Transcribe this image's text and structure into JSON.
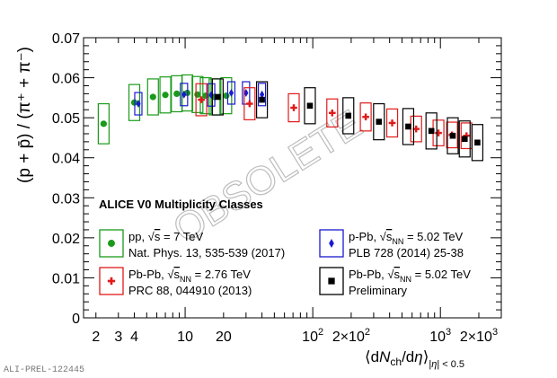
{
  "chart_data": {
    "type": "scatter",
    "title": "ALICE V0 Multiplicity Classes",
    "ylabel": "(p + p̄) / (π⁺ + π⁻)",
    "xlabel": "⟨dN_ch/dη⟩_|η|<0.5",
    "x_scale": "log",
    "xlim": [
      1.6,
      3000
    ],
    "ylim": [
      0,
      0.07
    ],
    "y_ticks": [
      "0",
      "0.01",
      "0.02",
      "0.03",
      "0.04",
      "0.05",
      "0.06",
      "0.07"
    ],
    "x_ticks": [
      {
        "x": 2,
        "label": "2"
      },
      {
        "x": 3,
        "label": "3"
      },
      {
        "x": 4,
        "label": "4"
      },
      {
        "x": 10,
        "label": "10"
      },
      {
        "x": 20,
        "label": "20"
      },
      {
        "x": 100,
        "label": "10²"
      },
      {
        "x": 200,
        "label": "2×10²"
      },
      {
        "x": 1000,
        "label": "10³"
      },
      {
        "x": 2000,
        "label": "2×10³"
      }
    ],
    "watermark": "OBSOLETE",
    "figure_id": "ALI-PREL-122445",
    "series": [
      {
        "name": "pp, √s = 7 TeV",
        "reference": "Nat. Phys. 13, 535-539 (2017)",
        "color": "#1a9a1a",
        "marker": "circle",
        "points": [
          {
            "x": 2.3,
            "y": 0.0485,
            "sys": 0.005
          },
          {
            "x": 4.0,
            "y": 0.0538,
            "sys": 0.0045
          },
          {
            "x": 5.6,
            "y": 0.0552,
            "sys": 0.0045
          },
          {
            "x": 7.0,
            "y": 0.0557,
            "sys": 0.0045
          },
          {
            "x": 8.6,
            "y": 0.056,
            "sys": 0.0045
          },
          {
            "x": 10.4,
            "y": 0.0562,
            "sys": 0.0045
          },
          {
            "x": 12.5,
            "y": 0.0558,
            "sys": 0.0045
          },
          {
            "x": 14.5,
            "y": 0.0555,
            "sys": 0.0045
          },
          {
            "x": 17.0,
            "y": 0.0552,
            "sys": 0.0045
          },
          {
            "x": 21.0,
            "y": 0.0555,
            "sys": 0.0045
          }
        ]
      },
      {
        "name": "p-Pb, √s_NN = 5.02 TeV",
        "reference": "PLB 728 (2014) 25-38",
        "color": "#1a1ad0",
        "marker": "diamond",
        "points": [
          {
            "x": 4.3,
            "y": 0.0535,
            "sys": 0.0028
          },
          {
            "x": 9.8,
            "y": 0.0558,
            "sys": 0.0028
          },
          {
            "x": 16.0,
            "y": 0.0557,
            "sys": 0.0028
          },
          {
            "x": 23.0,
            "y": 0.0562,
            "sys": 0.0028
          },
          {
            "x": 30.0,
            "y": 0.0562,
            "sys": 0.0028
          },
          {
            "x": 40.0,
            "y": 0.0558,
            "sys": 0.0028
          }
        ]
      },
      {
        "name": "Pb-Pb, √s_NN = 2.76 TeV",
        "reference": "PRC 88, 044910 (2013)",
        "color": "#e01a1a",
        "marker": "cross",
        "points": [
          {
            "x": 13.4,
            "y": 0.0545,
            "sys": 0.004
          },
          {
            "x": 32.0,
            "y": 0.0535,
            "sys": 0.004
          },
          {
            "x": 71.0,
            "y": 0.0525,
            "sys": 0.0035
          },
          {
            "x": 142.0,
            "y": 0.0512,
            "sys": 0.0035
          },
          {
            "x": 260.0,
            "y": 0.0502,
            "sys": 0.0035
          },
          {
            "x": 419.0,
            "y": 0.0487,
            "sys": 0.0035
          },
          {
            "x": 646.0,
            "y": 0.0472,
            "sys": 0.0032
          },
          {
            "x": 966.0,
            "y": 0.0462,
            "sys": 0.0032
          },
          {
            "x": 1233.0,
            "y": 0.0457,
            "sys": 0.0032
          },
          {
            "x": 1601.0,
            "y": 0.0455,
            "sys": 0.0032
          }
        ]
      },
      {
        "name": "Pb-Pb, √s_NN = 5.02 TeV",
        "reference": "Preliminary",
        "color": "#000000",
        "marker": "square",
        "points": [
          {
            "x": 18.0,
            "y": 0.0552,
            "sys": 0.0045
          },
          {
            "x": 40.0,
            "y": 0.0545,
            "sys": 0.0045
          },
          {
            "x": 95.0,
            "y": 0.053,
            "sys": 0.0045
          },
          {
            "x": 190.0,
            "y": 0.0505,
            "sys": 0.0045
          },
          {
            "x": 330.0,
            "y": 0.049,
            "sys": 0.0045
          },
          {
            "x": 560.0,
            "y": 0.0478,
            "sys": 0.0045
          },
          {
            "x": 850.0,
            "y": 0.0467,
            "sys": 0.0045
          },
          {
            "x": 1250.0,
            "y": 0.0455,
            "sys": 0.0045
          },
          {
            "x": 1550.0,
            "y": 0.0447,
            "sys": 0.0045
          },
          {
            "x": 1950.0,
            "y": 0.0438,
            "sys": 0.0045
          }
        ]
      }
    ]
  }
}
